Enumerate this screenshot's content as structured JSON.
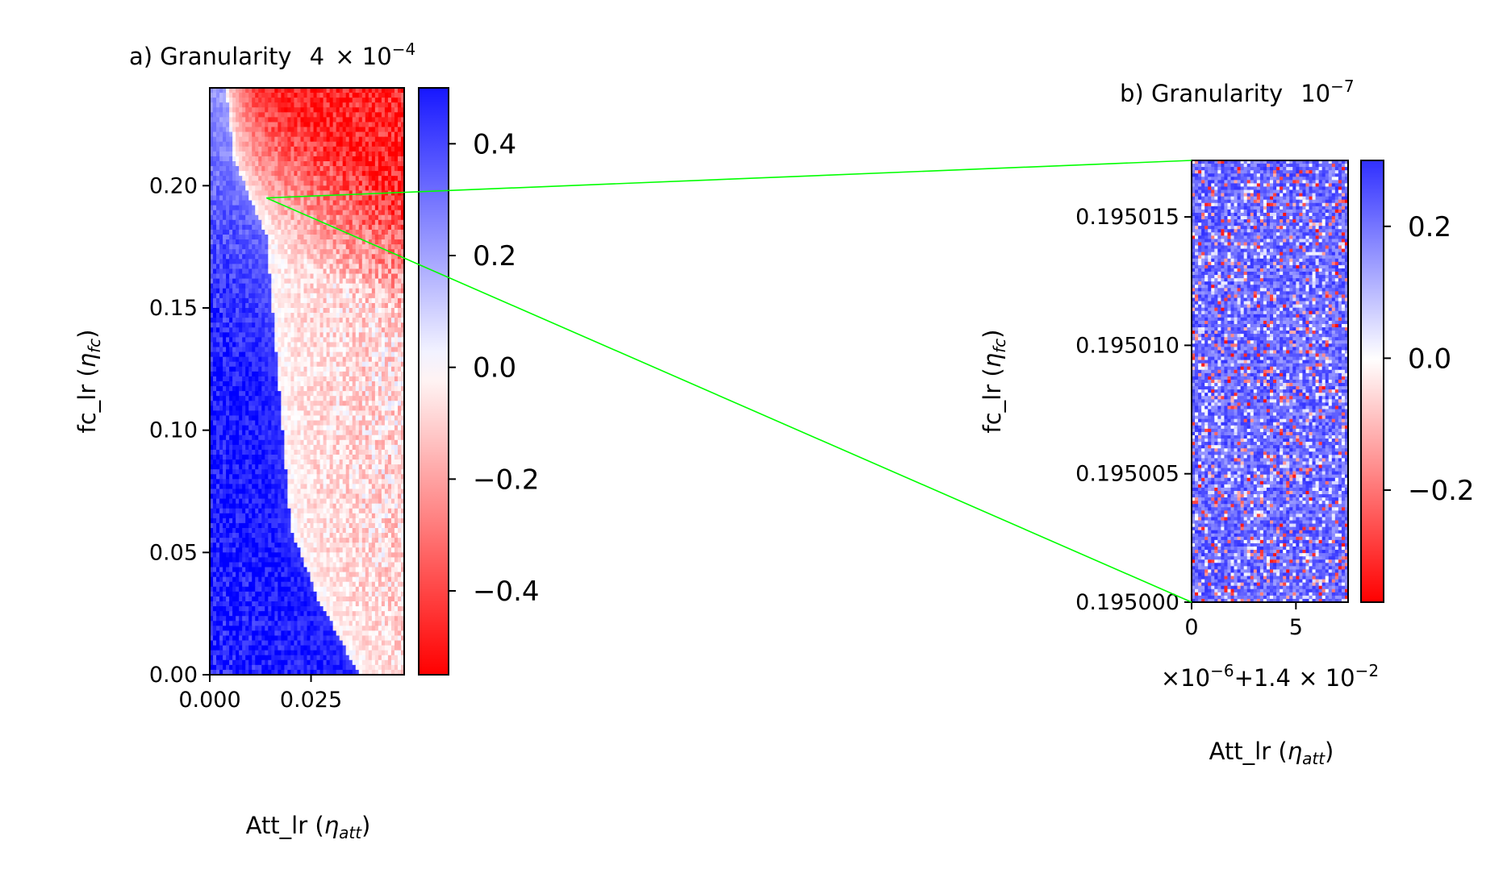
{
  "colors": {
    "cmap_low": "#ff0000",
    "cmap_mid": "#ffffff",
    "cmap_high": "#0000ff",
    "connector": "#00ff00",
    "axes": "#000000"
  },
  "chart_data": [
    {
      "id": "a",
      "type": "heatmap",
      "title_prefix": "a) Granularity",
      "scale_mantissa": "4",
      "scale_base": "10",
      "scale_exponent": "−4",
      "xlabel_main": "Att_lr (",
      "xlabel_symbol": "η",
      "xlabel_subscript": "att",
      "xlabel_close": ")",
      "ylabel_main": "fc_lr (",
      "ylabel_symbol": "η",
      "ylabel_subscript": "fc",
      "ylabel_close": ")",
      "xlim": [
        0.0,
        0.048
      ],
      "ylim": [
        0.0,
        0.24
      ],
      "xticks": [
        0.0,
        0.025
      ],
      "xtick_labels": [
        "0.000",
        "0.025"
      ],
      "yticks": [
        0.0,
        0.05,
        0.1,
        0.15,
        0.2
      ],
      "ytick_labels": [
        "0.00",
        "0.05",
        "0.10",
        "0.15",
        "0.20"
      ],
      "colorbar": {
        "range": [
          -0.55,
          0.5
        ],
        "ticks": [
          0.4,
          0.2,
          0.0,
          -0.2,
          -0.4
        ],
        "tick_labels": [
          "0.4",
          "0.2",
          "0.0",
          "−0.2",
          "−0.4"
        ]
      },
      "field_description": "positive (blue) for small Att_lr, negative (red) for larger Att_lr; boundary near Att_lr ≈ 0.035 at fc_lr 0, ≈ 0.017 at fc_lr 0.1, ≈ 0.013 at fc_lr 0.19; upper right strongly negative (≈ -0.45), lower right mildly negative (≈ -0.08), lower left strongly positive (≈ 0.5)",
      "boundary_points": [
        [
          0.0,
          0.037
        ],
        [
          0.03,
          0.027
        ],
        [
          0.06,
          0.02
        ],
        [
          0.1,
          0.018
        ],
        [
          0.14,
          0.016
        ],
        [
          0.18,
          0.014
        ],
        [
          0.21,
          0.006
        ],
        [
          0.24,
          0.004
        ]
      ],
      "zoom_point": [
        0.014,
        0.195
      ]
    },
    {
      "id": "b",
      "type": "heatmap",
      "title_prefix": "b) Granularity",
      "scale_base": "10",
      "scale_exponent": "−7",
      "xlabel_main": "Att_lr (",
      "xlabel_symbol": "η",
      "xlabel_subscript": "att",
      "xlabel_close": ")",
      "ylabel_main": "fc_lr (",
      "ylabel_symbol": "η",
      "ylabel_subscript": "fc",
      "ylabel_close": ")",
      "offset_text_pre": "×10",
      "offset_text_exp1": "−6",
      "offset_text_mid": "+1.4 × 10",
      "offset_text_exp2": "−2",
      "xlim": [
        0,
        7.5
      ],
      "ylim": [
        0.195,
        0.1950172
      ],
      "xticks": [
        0,
        5
      ],
      "xtick_labels": [
        "0",
        "5"
      ],
      "yticks": [
        0.195,
        0.195005,
        0.19501,
        0.195015
      ],
      "ytick_labels": [
        "0.195000",
        "0.195005",
        "0.195010",
        "0.195015"
      ],
      "colorbar": {
        "range": [
          -0.37,
          0.3
        ],
        "ticks": [
          0.2,
          0.0,
          -0.2
        ],
        "tick_labels": [
          "0.2",
          "0.0",
          "−0.2"
        ]
      },
      "field_description": "noisy field, mostly positive (blue, ≈ 0.15–0.3) with scattered white and red pixels"
    }
  ]
}
